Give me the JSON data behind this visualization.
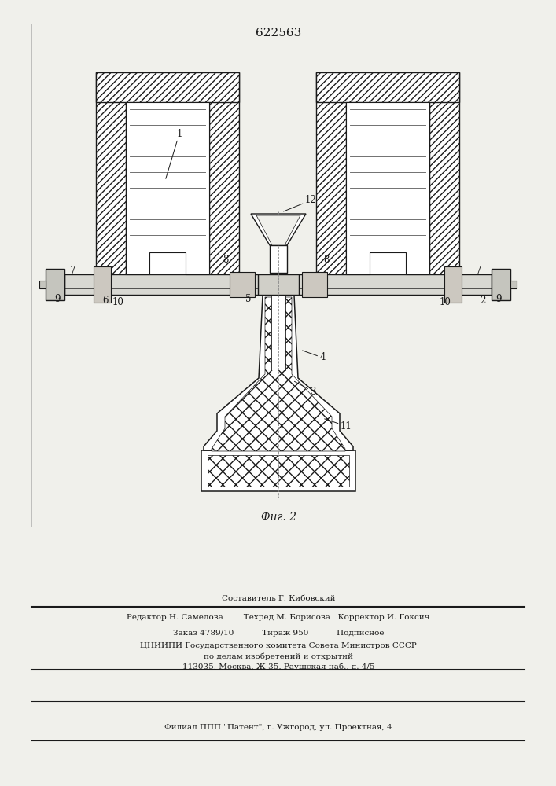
{
  "patent_number": "622563",
  "fig_label": "Фиг. 2",
  "caption_line1": "Составитель Г. Кибовский",
  "caption_line2": "Редактор Н. Самелова        Техред М. Борисова   Корректор И. Гоксич",
  "caption_line3": "Заказ 4789/10           Тираж 950           Подписное",
  "caption_line4": "ЦНИИПИ Государственного комитета Совета Министров СССР",
  "caption_line5": "по делам изобретений и открытий",
  "caption_line6": "113035, Москва, Ж-35, Раушская наб., д. 4/5",
  "caption_line7": "Филиал ППП \"Патент\", г. Ужгород, ул. Проектная, 4",
  "bg_color": "#f0f0eb",
  "line_color": "#1a1a1a"
}
